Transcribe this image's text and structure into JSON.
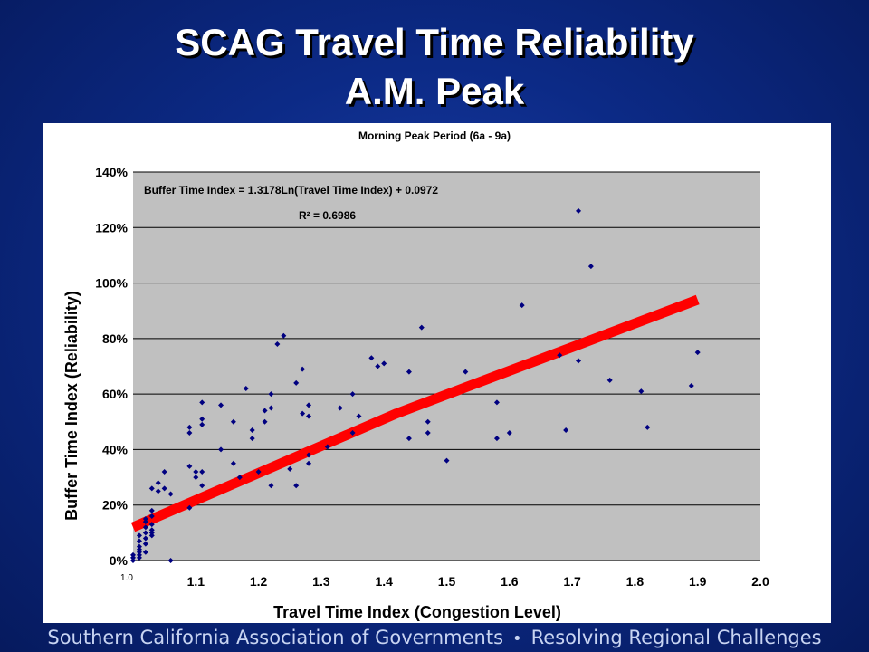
{
  "slide": {
    "title_line1": "SCAG Travel Time Reliability",
    "title_line2": "A.M. Peak"
  },
  "footer": {
    "left": "Southern California Association of Governments",
    "separator": "•",
    "right": "Resolving Regional Challenges"
  },
  "colors": {
    "background": "#0c2a86",
    "plot_area": "#c0c0c0",
    "points": "#000080",
    "trendline": "#ff0000"
  },
  "chart_data": {
    "type": "scatter",
    "title": "Morning Peak Period (6a - 9a)",
    "xlabel": "Travel Time Index (Congestion Level)",
    "ylabel": "Buffer Time Index (Reliability)",
    "xlim": [
      1.0,
      2.0
    ],
    "ylim": [
      0,
      140
    ],
    "x_ticks": [
      {
        "value": 1.0,
        "label": "1.0"
      },
      {
        "value": 1.1,
        "label": "1.1"
      },
      {
        "value": 1.2,
        "label": "1.2"
      },
      {
        "value": 1.3,
        "label": "1.3"
      },
      {
        "value": 1.4,
        "label": "1.4"
      },
      {
        "value": 1.5,
        "label": "1.5"
      },
      {
        "value": 1.6,
        "label": "1.6"
      },
      {
        "value": 1.7,
        "label": "1.7"
      },
      {
        "value": 1.8,
        "label": "1.8"
      },
      {
        "value": 1.9,
        "label": "1.9"
      },
      {
        "value": 2.0,
        "label": "2.0"
      }
    ],
    "y_ticks": [
      {
        "value": 0,
        "label": "0%"
      },
      {
        "value": 20,
        "label": "20%"
      },
      {
        "value": 40,
        "label": "40%"
      },
      {
        "value": 60,
        "label": "60%"
      },
      {
        "value": 80,
        "label": "80%"
      },
      {
        "value": 100,
        "label": "100%"
      },
      {
        "value": 120,
        "label": "120%"
      },
      {
        "value": 140,
        "label": "140%"
      }
    ],
    "grid": "horizontal",
    "annotations": {
      "equation": "Buffer Time Index = 1.3178Ln(Travel Time Index) + 0.0972",
      "r_squared": "R² = 0.6986"
    },
    "trendline": [
      [
        1.0,
        12
      ],
      [
        1.42,
        53
      ],
      [
        1.9,
        94
      ]
    ],
    "points": [
      [
        1.0,
        1
      ],
      [
        1.0,
        2
      ],
      [
        1.0,
        0
      ],
      [
        1.01,
        1
      ],
      [
        1.01,
        3
      ],
      [
        1.01,
        5
      ],
      [
        1.01,
        7
      ],
      [
        1.01,
        9
      ],
      [
        1.01,
        4
      ],
      [
        1.01,
        2
      ],
      [
        1.02,
        6
      ],
      [
        1.02,
        8
      ],
      [
        1.02,
        10
      ],
      [
        1.02,
        12
      ],
      [
        1.02,
        15
      ],
      [
        1.02,
        14
      ],
      [
        1.02,
        3
      ],
      [
        1.03,
        9
      ],
      [
        1.03,
        11
      ],
      [
        1.03,
        13
      ],
      [
        1.03,
        16
      ],
      [
        1.03,
        18
      ],
      [
        1.03,
        26
      ],
      [
        1.03,
        10
      ],
      [
        1.04,
        25
      ],
      [
        1.04,
        28
      ],
      [
        1.05,
        26
      ],
      [
        1.05,
        32
      ],
      [
        1.06,
        24
      ],
      [
        1.06,
        0
      ],
      [
        1.09,
        19
      ],
      [
        1.09,
        34
      ],
      [
        1.09,
        46
      ],
      [
        1.09,
        48
      ],
      [
        1.1,
        30
      ],
      [
        1.1,
        32
      ],
      [
        1.11,
        27
      ],
      [
        1.11,
        32
      ],
      [
        1.11,
        49
      ],
      [
        1.11,
        51
      ],
      [
        1.11,
        57
      ],
      [
        1.14,
        40
      ],
      [
        1.14,
        56
      ],
      [
        1.16,
        35
      ],
      [
        1.16,
        50
      ],
      [
        1.17,
        30
      ],
      [
        1.18,
        62
      ],
      [
        1.19,
        44
      ],
      [
        1.19,
        47
      ],
      [
        1.2,
        32
      ],
      [
        1.21,
        50
      ],
      [
        1.21,
        54
      ],
      [
        1.22,
        27
      ],
      [
        1.22,
        55
      ],
      [
        1.22,
        60
      ],
      [
        1.23,
        78
      ],
      [
        1.24,
        81
      ],
      [
        1.25,
        33
      ],
      [
        1.26,
        27
      ],
      [
        1.26,
        64
      ],
      [
        1.27,
        53
      ],
      [
        1.27,
        69
      ],
      [
        1.28,
        35
      ],
      [
        1.28,
        38
      ],
      [
        1.28,
        52
      ],
      [
        1.28,
        56
      ],
      [
        1.31,
        41
      ],
      [
        1.33,
        55
      ],
      [
        1.35,
        46
      ],
      [
        1.35,
        60
      ],
      [
        1.36,
        52
      ],
      [
        1.38,
        73
      ],
      [
        1.39,
        70
      ],
      [
        1.4,
        71
      ],
      [
        1.44,
        44
      ],
      [
        1.44,
        68
      ],
      [
        1.46,
        84
      ],
      [
        1.47,
        46
      ],
      [
        1.47,
        50
      ],
      [
        1.5,
        36
      ],
      [
        1.53,
        68
      ],
      [
        1.58,
        44
      ],
      [
        1.58,
        57
      ],
      [
        1.6,
        46
      ],
      [
        1.62,
        92
      ],
      [
        1.68,
        74
      ],
      [
        1.69,
        47
      ],
      [
        1.71,
        72
      ],
      [
        1.71,
        126
      ],
      [
        1.73,
        106
      ],
      [
        1.76,
        65
      ],
      [
        1.81,
        61
      ],
      [
        1.82,
        48
      ],
      [
        1.89,
        63
      ],
      [
        1.9,
        75
      ]
    ]
  }
}
